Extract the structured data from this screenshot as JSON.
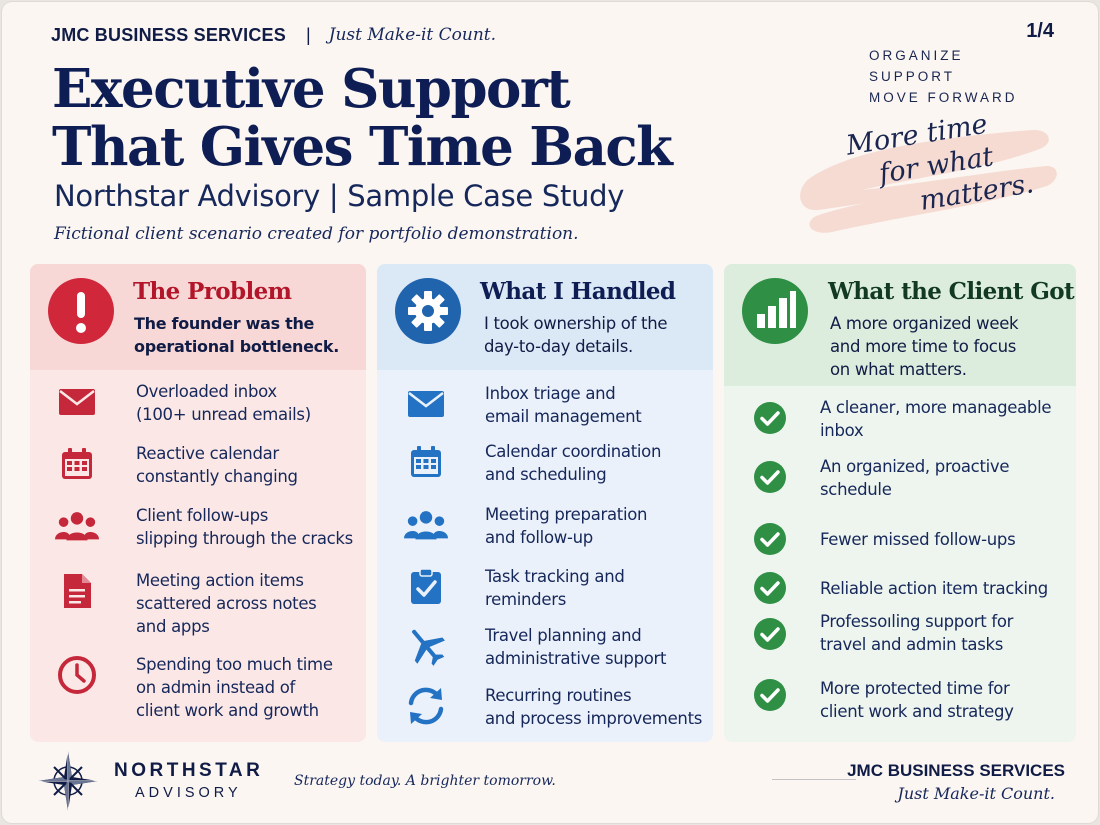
{
  "header": {
    "brand": "JMC BUSINESS SERVICES",
    "separator": "|",
    "tagline": "Just Make-it Count.",
    "page_number": "1/4",
    "motto": [
      "ORGANIZE",
      "SUPPORT",
      "MOVE FORWARD"
    ],
    "headline_line1": "Executive Support",
    "headline_line2": "That Gives Time Back",
    "subtitle": "Northstar Advisory | Sample Case Study",
    "disclaimer": "Fictional client scenario created for portfolio demonstration.",
    "handwritten": [
      "More time",
      "for what",
      "matters."
    ]
  },
  "problem": {
    "title": "The Problem",
    "subtitle_lines": [
      "The founder was the",
      "operational bottleneck."
    ],
    "items": [
      {
        "icon": "envelope-icon",
        "lines": [
          "Overloaded inbox",
          "(100+ unread emails)"
        ]
      },
      {
        "icon": "calendar-icon",
        "lines": [
          "Reactive calendar",
          "constantly changing"
        ]
      },
      {
        "icon": "people-icon",
        "lines": [
          "Client follow-ups",
          "slipping through the cracks"
        ]
      },
      {
        "icon": "document-icon",
        "lines": [
          "Meeting action items",
          "scattered across notes",
          "and apps"
        ]
      },
      {
        "icon": "clock-icon",
        "lines": [
          "Spending too much time",
          "on admin instead of",
          "client work and growth"
        ]
      }
    ]
  },
  "handled": {
    "title": "What I Handled",
    "subtitle_lines": [
      "I took ownership of the",
      "day-to-day details."
    ],
    "items": [
      {
        "icon": "envelope-icon",
        "lines": [
          "Inbox triage and",
          "email management"
        ]
      },
      {
        "icon": "calendar-icon",
        "lines": [
          "Calendar coordination",
          "and scheduling"
        ]
      },
      {
        "icon": "people-icon",
        "lines": [
          "Meeting preparation",
          "and follow-up"
        ]
      },
      {
        "icon": "checklist-icon",
        "lines": [
          "Task tracking and",
          "reminders"
        ]
      },
      {
        "icon": "airplane-icon",
        "lines": [
          "Travel planning and",
          "administrative support"
        ]
      },
      {
        "icon": "refresh-icon",
        "lines": [
          "Recurring routines",
          "and process improvements"
        ]
      }
    ]
  },
  "result": {
    "title": "What the Client Got",
    "subtitle_lines": [
      "A more organized week",
      "and more time to focus",
      "on what matters."
    ],
    "items": [
      {
        "icon": "check-circle-icon",
        "lines": [
          "A cleaner, more manageable",
          "inbox"
        ]
      },
      {
        "icon": "check-circle-icon",
        "lines": [
          "An organized, proactive",
          "schedule"
        ]
      },
      {
        "icon": "check-circle-icon",
        "lines": [
          "Fewer missed follow-ups"
        ]
      },
      {
        "icon": "check-circle-icon",
        "lines": [
          "Reliable action item tracking"
        ]
      },
      {
        "icon": "check-circle-icon",
        "lines": [
          "Professoıling support for",
          "travel and admin tasks"
        ]
      },
      {
        "icon": "check-circle-icon",
        "lines": [
          "More protected time for",
          "client work and strategy"
        ]
      }
    ]
  },
  "footer": {
    "client_name": "NORTHSTAR",
    "client_sub": "ADVISORY",
    "client_slogan": "Strategy today. A brighter tomorrow.",
    "brand": "JMC BUSINESS SERVICES",
    "tagline": "Just Make-it Count."
  },
  "colors": {
    "navy": "#0e1e54",
    "problem_red": "#d0283a",
    "handled_blue": "#1f64ad",
    "result_green": "#2f8f45"
  }
}
